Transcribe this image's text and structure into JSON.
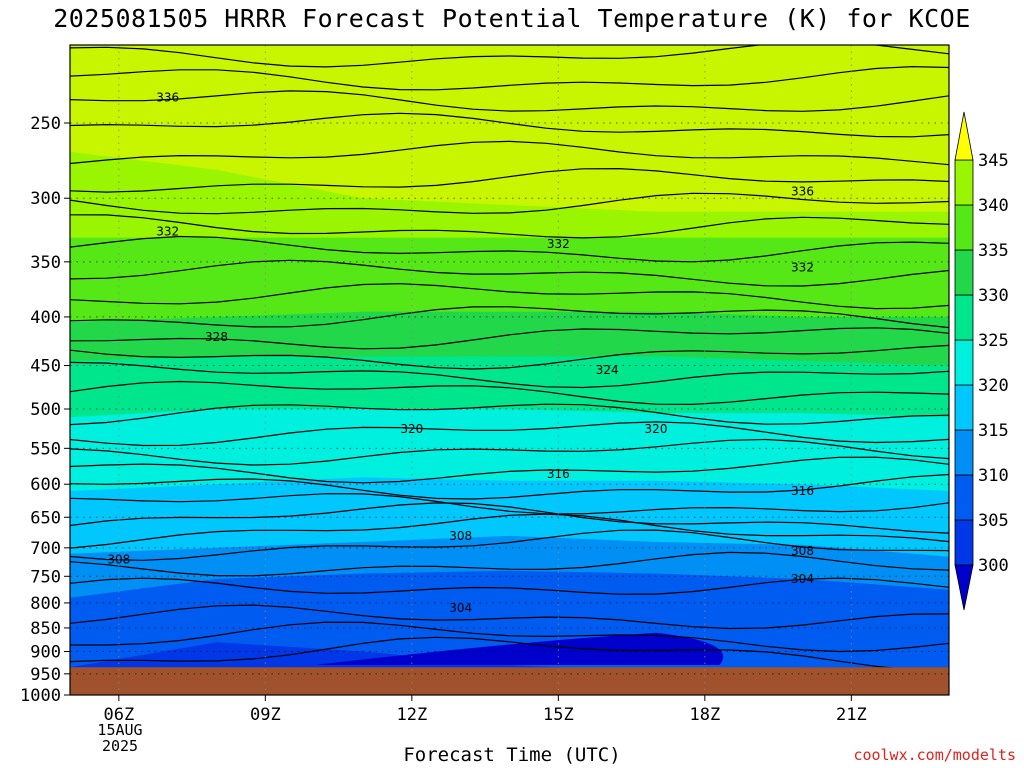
{
  "title": "2025081505 HRRR Forecast Potential Temperature (K) for KCOE",
  "xlabel": "Forecast Time (UTC)",
  "credit": "coolwx.com/modelts",
  "date_label": [
    "15AUG",
    "2025"
  ],
  "colors": {
    "ground": "#a0522d",
    "bands": [
      "#0000cc",
      "#0037e6",
      "#005bf0",
      "#0090f5",
      "#00c8ff",
      "#00f0e0",
      "#00e68c",
      "#22d84a",
      "#55e816",
      "#99f600",
      "#c8f600",
      "#ffff00"
    ]
  },
  "chart_data": {
    "type": "contour",
    "title": "2025081505 HRRR Forecast Potential Temperature (K) for KCOE",
    "xlabel": "Forecast Time (UTC)",
    "ylabel": "",
    "x_ticks": [
      "06Z",
      "09Z",
      "12Z",
      "15Z",
      "18Z",
      "21Z"
    ],
    "y_ticks": [
      250,
      300,
      350,
      400,
      450,
      500,
      550,
      600,
      650,
      700,
      750,
      800,
      850,
      900,
      950,
      1000
    ],
    "y_axis": "pressure (hPa), reversed, log-like",
    "colorbar": {
      "levels": [
        300,
        305,
        310,
        315,
        320,
        325,
        330,
        335,
        340,
        345
      ],
      "extend": "both"
    },
    "contour_interval": 2,
    "contour_labels": [
      {
        "value": "336",
        "time": "07Z",
        "pressure": 235
      },
      {
        "value": "336",
        "time": "20Z",
        "pressure": 295
      },
      {
        "value": "332",
        "time": "07Z",
        "pressure": 325
      },
      {
        "value": "332",
        "time": "15Z",
        "pressure": 335
      },
      {
        "value": "332",
        "time": "20Z",
        "pressure": 355
      },
      {
        "value": "328",
        "time": "08Z",
        "pressure": 420
      },
      {
        "value": "324",
        "time": "16Z",
        "pressure": 455
      },
      {
        "value": "320",
        "time": "12Z",
        "pressure": 525
      },
      {
        "value": "320",
        "time": "17Z",
        "pressure": 525
      },
      {
        "value": "316",
        "time": "15Z",
        "pressure": 585
      },
      {
        "value": "316",
        "time": "20Z",
        "pressure": 610
      },
      {
        "value": "308",
        "time": "13Z",
        "pressure": 680
      },
      {
        "value": "308",
        "time": "06Z",
        "pressure": 720
      },
      {
        "value": "308",
        "time": "20Z",
        "pressure": 705
      },
      {
        "value": "304",
        "time": "20Z",
        "pressure": 755
      },
      {
        "value": "304",
        "time": "13Z",
        "pressure": 810
      }
    ],
    "grid": true
  }
}
